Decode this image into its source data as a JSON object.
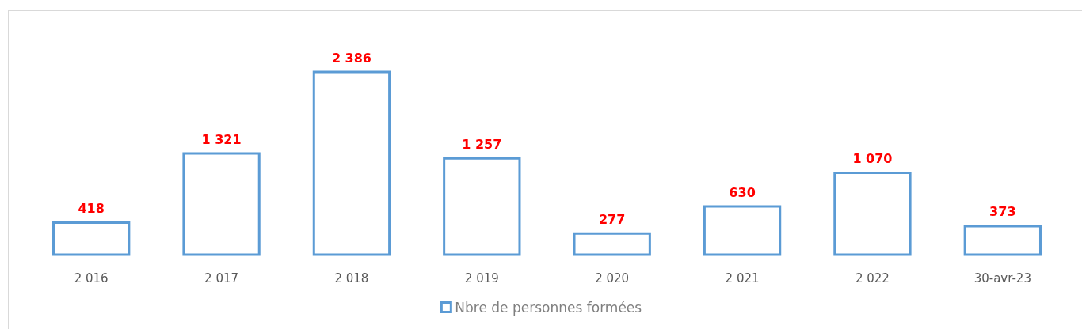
{
  "chart_data": {
    "type": "bar",
    "categories": [
      "2 016",
      "2 017",
      "2 018",
      "2 019",
      "2 020",
      "2 021",
      "2 022",
      "30-avr-23"
    ],
    "series": [
      {
        "name": "Nbre de personnes formées",
        "color": "#5b9bd5",
        "values": [
          418,
          1321,
          2386,
          1257,
          277,
          630,
          1070,
          373
        ],
        "value_labels": [
          "418",
          "1 321",
          "2 386",
          "1 257",
          "277",
          "630",
          "1 070",
          "373"
        ]
      }
    ],
    "legend": "bottom"
  }
}
